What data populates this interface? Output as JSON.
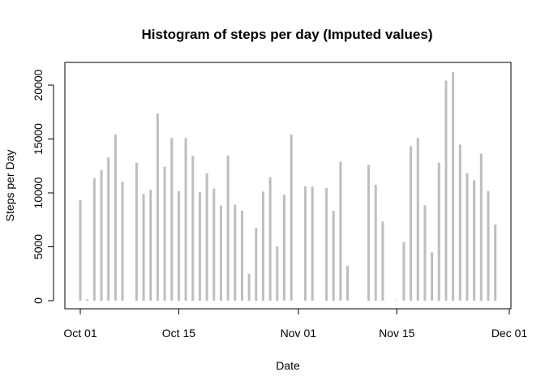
{
  "chart_data": {
    "type": "bar",
    "title": "Histogram of steps per day (Imputed values)",
    "xlabel": "Date",
    "ylabel": "Steps per Day",
    "x_ticks": [
      {
        "date": "2012-10-01",
        "label": "Oct 01"
      },
      {
        "date": "2012-10-15",
        "label": "Oct 15"
      },
      {
        "date": "2012-11-01",
        "label": "Nov 01"
      },
      {
        "date": "2012-11-15",
        "label": "Nov 15"
      },
      {
        "date": "2012-12-01",
        "label": "Dec 01"
      }
    ],
    "y_ticks": [
      0,
      5000,
      10000,
      15000,
      20000
    ],
    "xlim": [
      "2012-09-30",
      "2012-12-01"
    ],
    "ylim": [
      0,
      20000
    ],
    "grid": false,
    "bar_color": "#bebebe",
    "x": [
      "2012-10-01",
      "2012-10-02",
      "2012-10-03",
      "2012-10-04",
      "2012-10-05",
      "2012-10-06",
      "2012-10-07",
      "2012-10-08",
      "2012-10-09",
      "2012-10-10",
      "2012-10-11",
      "2012-10-12",
      "2012-10-13",
      "2012-10-14",
      "2012-10-15",
      "2012-10-16",
      "2012-10-17",
      "2012-10-18",
      "2012-10-19",
      "2012-10-20",
      "2012-10-21",
      "2012-10-22",
      "2012-10-23",
      "2012-10-24",
      "2012-10-25",
      "2012-10-26",
      "2012-10-27",
      "2012-10-28",
      "2012-10-29",
      "2012-10-30",
      "2012-10-31",
      "2012-11-01",
      "2012-11-02",
      "2012-11-03",
      "2012-11-04",
      "2012-11-05",
      "2012-11-06",
      "2012-11-07",
      "2012-11-08",
      "2012-11-09",
      "2012-11-10",
      "2012-11-11",
      "2012-11-12",
      "2012-11-13",
      "2012-11-14",
      "2012-11-15",
      "2012-11-16",
      "2012-11-17",
      "2012-11-18",
      "2012-11-19",
      "2012-11-20",
      "2012-11-21",
      "2012-11-22",
      "2012-11-23",
      "2012-11-24",
      "2012-11-25",
      "2012-11-26",
      "2012-11-27",
      "2012-11-28",
      "2012-11-29",
      "2012-11-30"
    ],
    "values": [
      9354,
      126,
      11352,
      12116,
      13294,
      15420,
      11015,
      0,
      12811,
      9900,
      10304,
      17382,
      12426,
      15098,
      10139,
      15084,
      13452,
      10056,
      11829,
      10395,
      8821,
      13460,
      8918,
      8355,
      2492,
      6778,
      10119,
      11458,
      5018,
      9819,
      15414,
      0,
      10600,
      10571,
      0,
      10439,
      8334,
      12883,
      3219,
      0,
      0,
      12608,
      10765,
      7336,
      0,
      41,
      5441,
      14339,
      15110,
      8841,
      4472,
      12787,
      20427,
      21194,
      14478,
      11834,
      11162,
      13646,
      10183,
      7047,
      0
    ]
  }
}
